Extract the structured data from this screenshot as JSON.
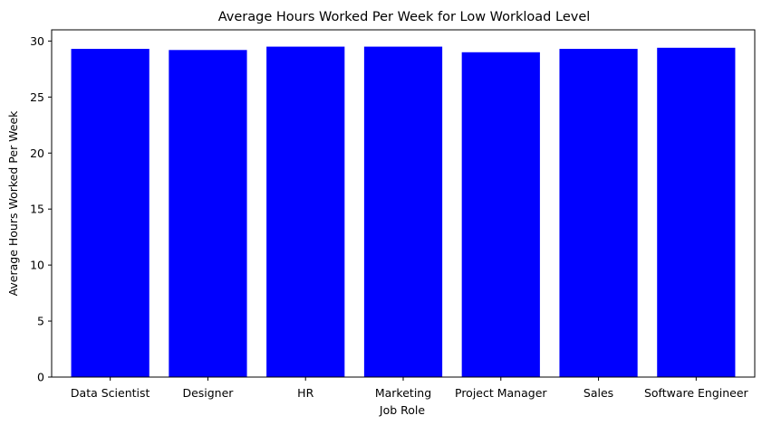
{
  "chart_data": {
    "type": "bar",
    "title": "Average Hours Worked Per Week for Low Workload Level",
    "xlabel": "Job Role",
    "ylabel": "Average Hours Worked Per Week",
    "categories": [
      "Data Scientist",
      "Designer",
      "HR",
      "Marketing",
      "Project Manager",
      "Sales",
      "Software Engineer"
    ],
    "values": [
      29.3,
      29.2,
      29.5,
      29.5,
      29.0,
      29.3,
      29.4
    ],
    "ylim": [
      0,
      31
    ],
    "yticks": [
      0,
      5,
      10,
      15,
      20,
      25,
      30
    ],
    "bar_color": "#0000ff",
    "grid": false
  }
}
